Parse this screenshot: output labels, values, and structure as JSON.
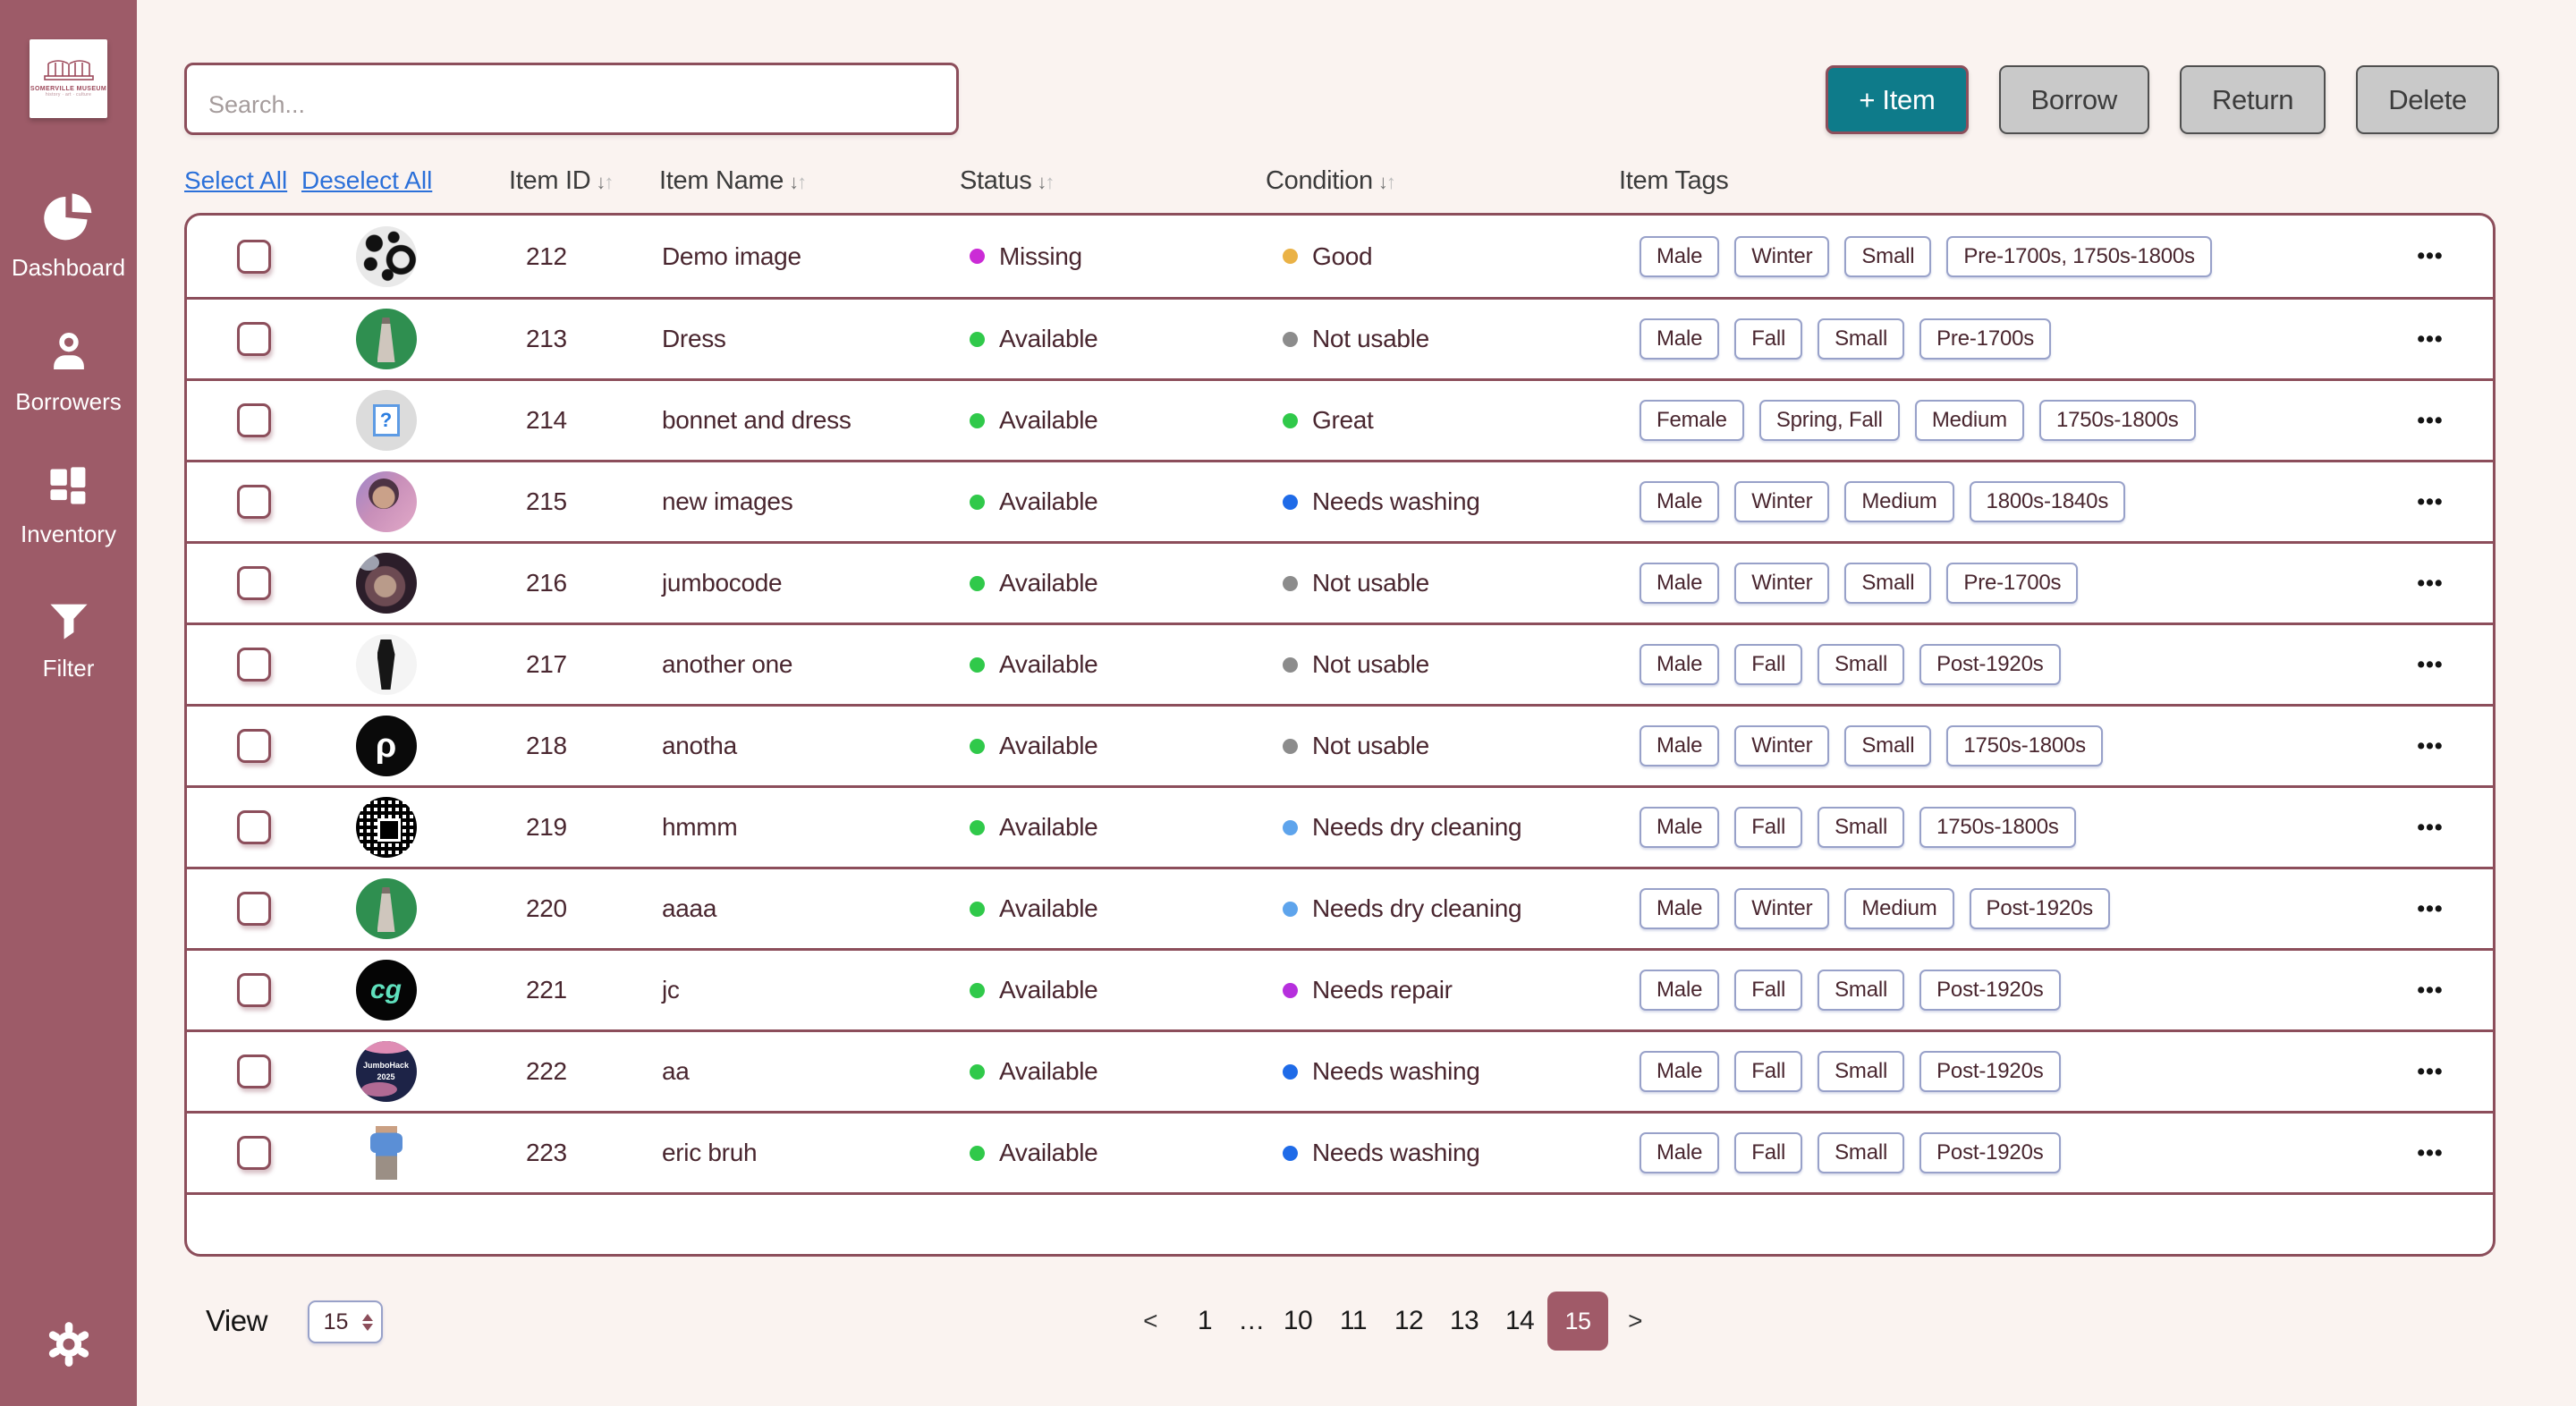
{
  "app": {
    "brand": {
      "name": "SOMERVILLE MUSEUM",
      "tagline": "history · art · culture"
    }
  },
  "sidebar": {
    "items": [
      {
        "label": "Dashboard",
        "icon": "pie-chart-icon"
      },
      {
        "label": "Borrowers",
        "icon": "person-icon"
      },
      {
        "label": "Inventory",
        "icon": "grid-icon"
      },
      {
        "label": "Filter",
        "icon": "funnel-icon"
      }
    ],
    "settings_icon": "gear-icon"
  },
  "toolbar": {
    "search_placeholder": "Search...",
    "add_item_label": "+ Item",
    "borrow_label": "Borrow",
    "return_label": "Return",
    "delete_label": "Delete"
  },
  "table": {
    "select_all": "Select All",
    "deselect_all": "Deselect All",
    "columns": [
      {
        "label": "Item ID",
        "sortable": true
      },
      {
        "label": "Item Name",
        "sortable": true
      },
      {
        "label": "Status",
        "sortable": true
      },
      {
        "label": "Condition",
        "sortable": true
      },
      {
        "label": "Item Tags",
        "sortable": false
      }
    ],
    "sort_icon": {
      "down": "↓",
      "up": "↑"
    },
    "row_menu_glyph": "•••",
    "status_colors": {
      "Missing": "#cb2bd6",
      "Available": "#30c94a"
    },
    "condition_colors": {
      "Good": "#eab246",
      "Not usable": "#8c8c8c",
      "Great": "#30c94a",
      "Needs washing": "#1f6be8",
      "Needs dry cleaning": "#5ea4ec",
      "Needs repair": "#b62fdd"
    },
    "rows": [
      {
        "id": "212",
        "name": "Demo image",
        "status": "Missing",
        "condition": "Good",
        "tags": [
          "Male",
          "Winter",
          "Small",
          "Pre-1700s, 1750s-1800s"
        ],
        "avatar": "abstract",
        "avatar_glyph": ""
      },
      {
        "id": "213",
        "name": "Dress",
        "status": "Available",
        "condition": "Not usable",
        "tags": [
          "Male",
          "Fall",
          "Small",
          "Pre-1700s"
        ],
        "avatar": "dress",
        "avatar_glyph": ""
      },
      {
        "id": "214",
        "name": "bonnet and dress",
        "status": "Available",
        "condition": "Great",
        "tags": [
          "Female",
          "Spring, Fall",
          "Medium",
          "1750s-1800s"
        ],
        "avatar": "broken",
        "avatar_glyph": "?"
      },
      {
        "id": "215",
        "name": "new images",
        "status": "Available",
        "condition": "Needs washing",
        "tags": [
          "Male",
          "Winter",
          "Medium",
          "1800s-1840s"
        ],
        "avatar": "personPink",
        "avatar_glyph": ""
      },
      {
        "id": "216",
        "name": "jumbocode",
        "status": "Available",
        "condition": "Not usable",
        "tags": [
          "Male",
          "Winter",
          "Small",
          "Pre-1700s"
        ],
        "avatar": "photoDark",
        "avatar_glyph": ""
      },
      {
        "id": "217",
        "name": "another one",
        "status": "Available",
        "condition": "Not usable",
        "tags": [
          "Male",
          "Fall",
          "Small",
          "Post-1920s"
        ],
        "avatar": "garment",
        "avatar_glyph": ""
      },
      {
        "id": "218",
        "name": "anotha",
        "status": "Available",
        "condition": "Not usable",
        "tags": [
          "Male",
          "Winter",
          "Small",
          "1750s-1800s"
        ],
        "avatar": "logoP",
        "avatar_glyph": "ρ"
      },
      {
        "id": "219",
        "name": "hmmm",
        "status": "Available",
        "condition": "Needs dry cleaning",
        "tags": [
          "Male",
          "Fall",
          "Small",
          "1750s-1800s"
        ],
        "avatar": "qr",
        "avatar_glyph": ""
      },
      {
        "id": "220",
        "name": "aaaa",
        "status": "Available",
        "condition": "Needs dry cleaning",
        "tags": [
          "Male",
          "Winter",
          "Medium",
          "Post-1920s"
        ],
        "avatar": "dress",
        "avatar_glyph": ""
      },
      {
        "id": "221",
        "name": "jc",
        "status": "Available",
        "condition": "Needs repair",
        "tags": [
          "Male",
          "Fall",
          "Small",
          "Post-1920s"
        ],
        "avatar": "logoCg",
        "avatar_glyph": "cg"
      },
      {
        "id": "222",
        "name": "aa",
        "status": "Available",
        "condition": "Needs washing",
        "tags": [
          "Male",
          "Fall",
          "Small",
          "Post-1920s"
        ],
        "avatar": "poster",
        "avatar_glyph": "JumboHack 2025"
      },
      {
        "id": "223",
        "name": "eric bruh",
        "status": "Available",
        "condition": "Needs washing",
        "tags": [
          "Male",
          "Fall",
          "Small",
          "Post-1920s"
        ],
        "avatar": "personBlue",
        "avatar_glyph": ""
      }
    ]
  },
  "pagination": {
    "view_label": "View",
    "page_size": "15",
    "prev": "<",
    "next": ">",
    "pages": [
      "1",
      "…",
      "10",
      "11",
      "12",
      "13",
      "14",
      "15"
    ],
    "active_page": "15"
  },
  "colors": {
    "sidebar_bg": "#9d5b68",
    "table_border": "#8c4e5b",
    "teal_primary": "#0e7b8a",
    "gray_button": "#c9c9c9",
    "link_blue": "#2b70d9",
    "chip_border": "#98a1c9",
    "page_bg": "#faf3f0",
    "active_page_bg": "#a05a68"
  }
}
